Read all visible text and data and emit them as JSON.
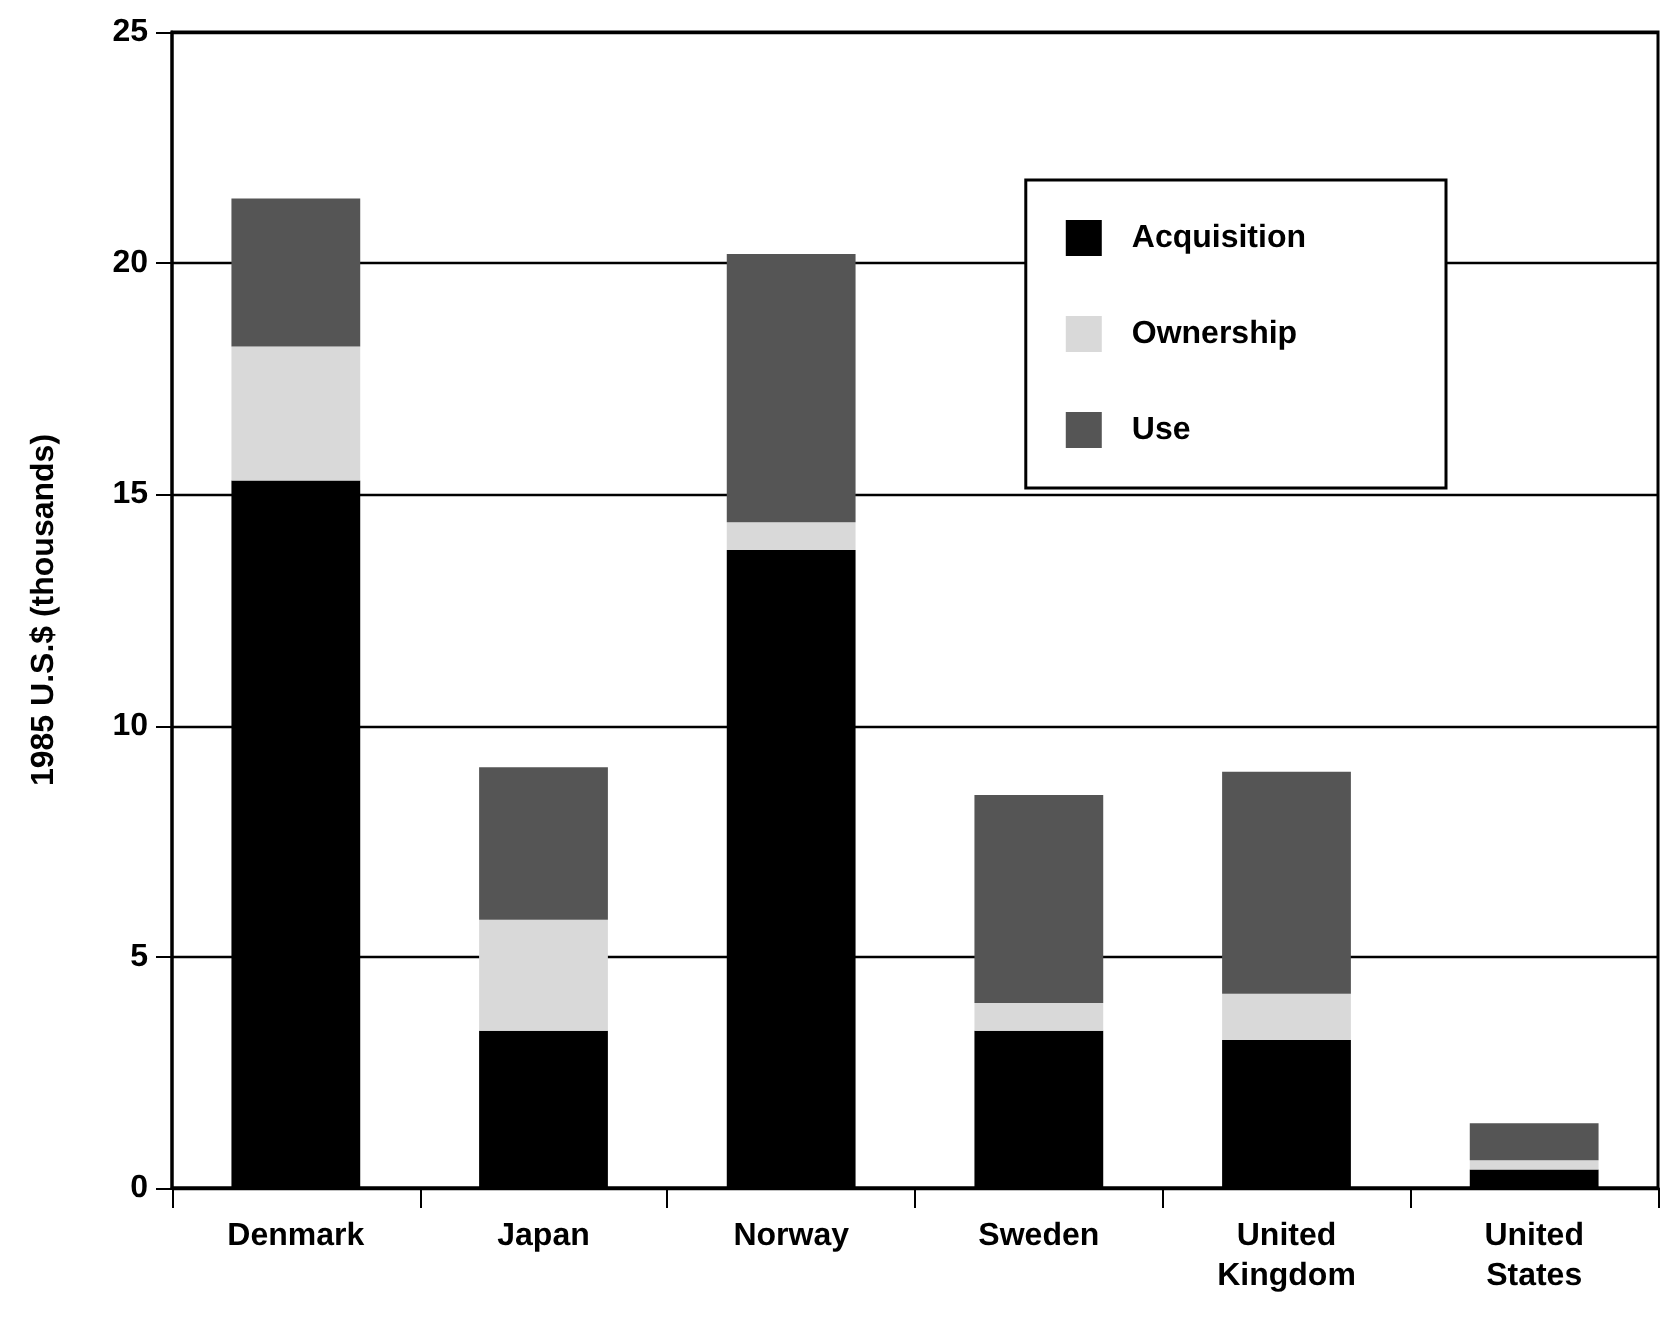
{
  "chart_data": {
    "type": "bar",
    "ylabel": "1985 U.S.$ (thousands)",
    "categories": [
      "Denmark",
      "Japan",
      "Norway",
      "Sweden",
      "United Kingdom",
      "United States"
    ],
    "stacked": true,
    "series": [
      {
        "name": "Acquisition",
        "color": "#000000",
        "values": [
          15.3,
          3.4,
          13.8,
          3.4,
          3.2,
          0.4
        ]
      },
      {
        "name": "Ownership",
        "color": "#d9d9d9",
        "values": [
          2.9,
          2.4,
          0.6,
          0.6,
          1.0,
          0.2
        ]
      },
      {
        "name": "Use",
        "color": "#555555",
        "values": [
          3.2,
          3.3,
          5.8,
          4.5,
          4.8,
          0.8
        ]
      }
    ],
    "ylim": [
      0,
      25
    ],
    "yticks": [
      0,
      5,
      10,
      15,
      20,
      25
    ],
    "grid": "y",
    "legend": "top right"
  }
}
